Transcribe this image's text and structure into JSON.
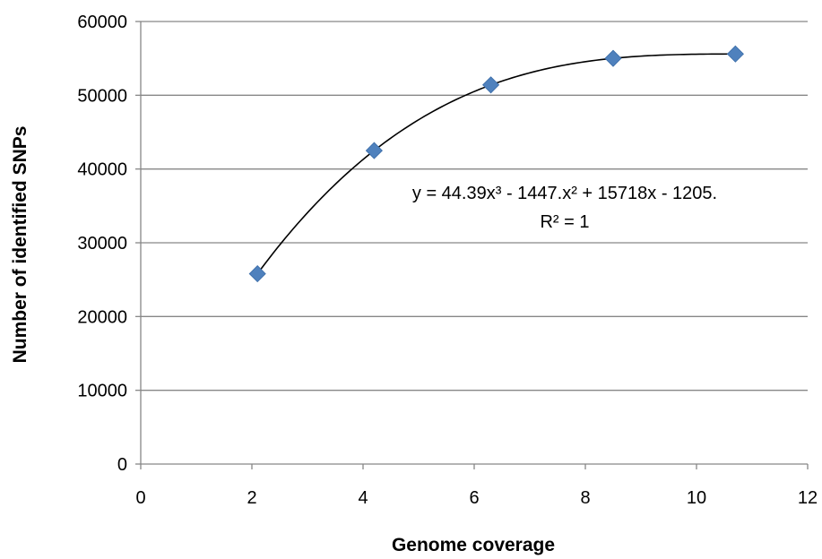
{
  "chart_data": {
    "type": "scatter",
    "title": "",
    "xlabel": "Genome coverage",
    "ylabel": "Number of identified SNPs",
    "xlim": [
      0,
      12
    ],
    "ylim": [
      0,
      60000
    ],
    "xticks": [
      "0",
      "2",
      "4",
      "6",
      "8",
      "10",
      "12"
    ],
    "yticks": [
      "0",
      "10000",
      "20000",
      "30000",
      "40000",
      "50000",
      "60000"
    ],
    "grid": "horizontal",
    "marker_color": "#4F81BD",
    "series": [
      {
        "x": [
          2.1,
          4.2,
          6.3,
          8.5,
          10.7
        ],
        "y": [
          25800,
          42500,
          51400,
          55000,
          55600
        ]
      }
    ],
    "trendline": {
      "type": "polynomial",
      "order": 3,
      "equation": "y = 44.39x³ - 1447.x² + 15718x - 1205.",
      "r_squared": "R² = 1"
    }
  }
}
